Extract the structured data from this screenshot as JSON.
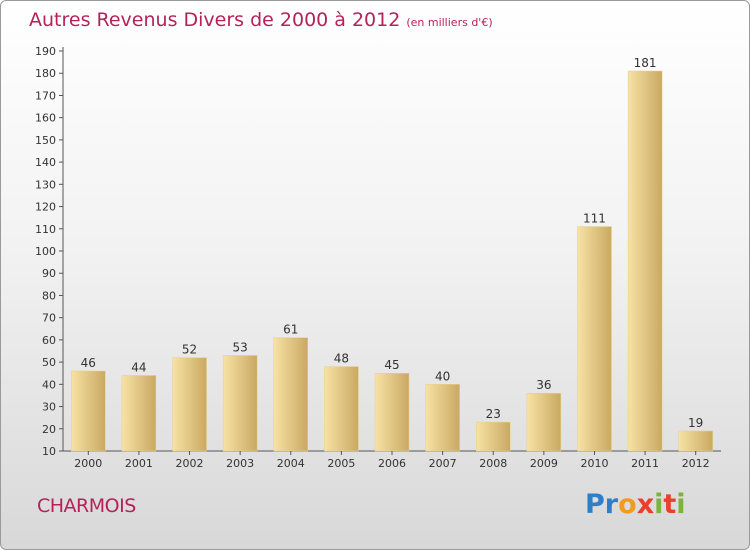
{
  "title": "Autres Revenus Divers de 2000 à 2012",
  "subtitle": "(en milliers d'€)",
  "place": "CHARMOIS",
  "logo": {
    "text": "Proxiti",
    "colors": [
      "#2f7fc8",
      "#f29b1d",
      "#e8402a",
      "#7bb43a"
    ]
  },
  "colors": {
    "title": "#b5225a",
    "bar_light": "#f7e2a4",
    "bar_dark": "#c9a963",
    "axis": "#555555"
  },
  "chart_data": {
    "type": "bar",
    "title": "Autres Revenus Divers de 2000 à 2012",
    "subtitle": "(en milliers d'€)",
    "xlabel": "",
    "ylabel": "",
    "categories": [
      "2000",
      "2001",
      "2002",
      "2003",
      "2004",
      "2005",
      "2006",
      "2007",
      "2008",
      "2009",
      "2010",
      "2011",
      "2012"
    ],
    "values": [
      46,
      44,
      52,
      53,
      61,
      48,
      45,
      40,
      23,
      36,
      111,
      181,
      19
    ],
    "ylim": [
      10,
      190
    ],
    "ytick_step": 10,
    "grid": false,
    "legend": "none",
    "data_labels": true
  }
}
